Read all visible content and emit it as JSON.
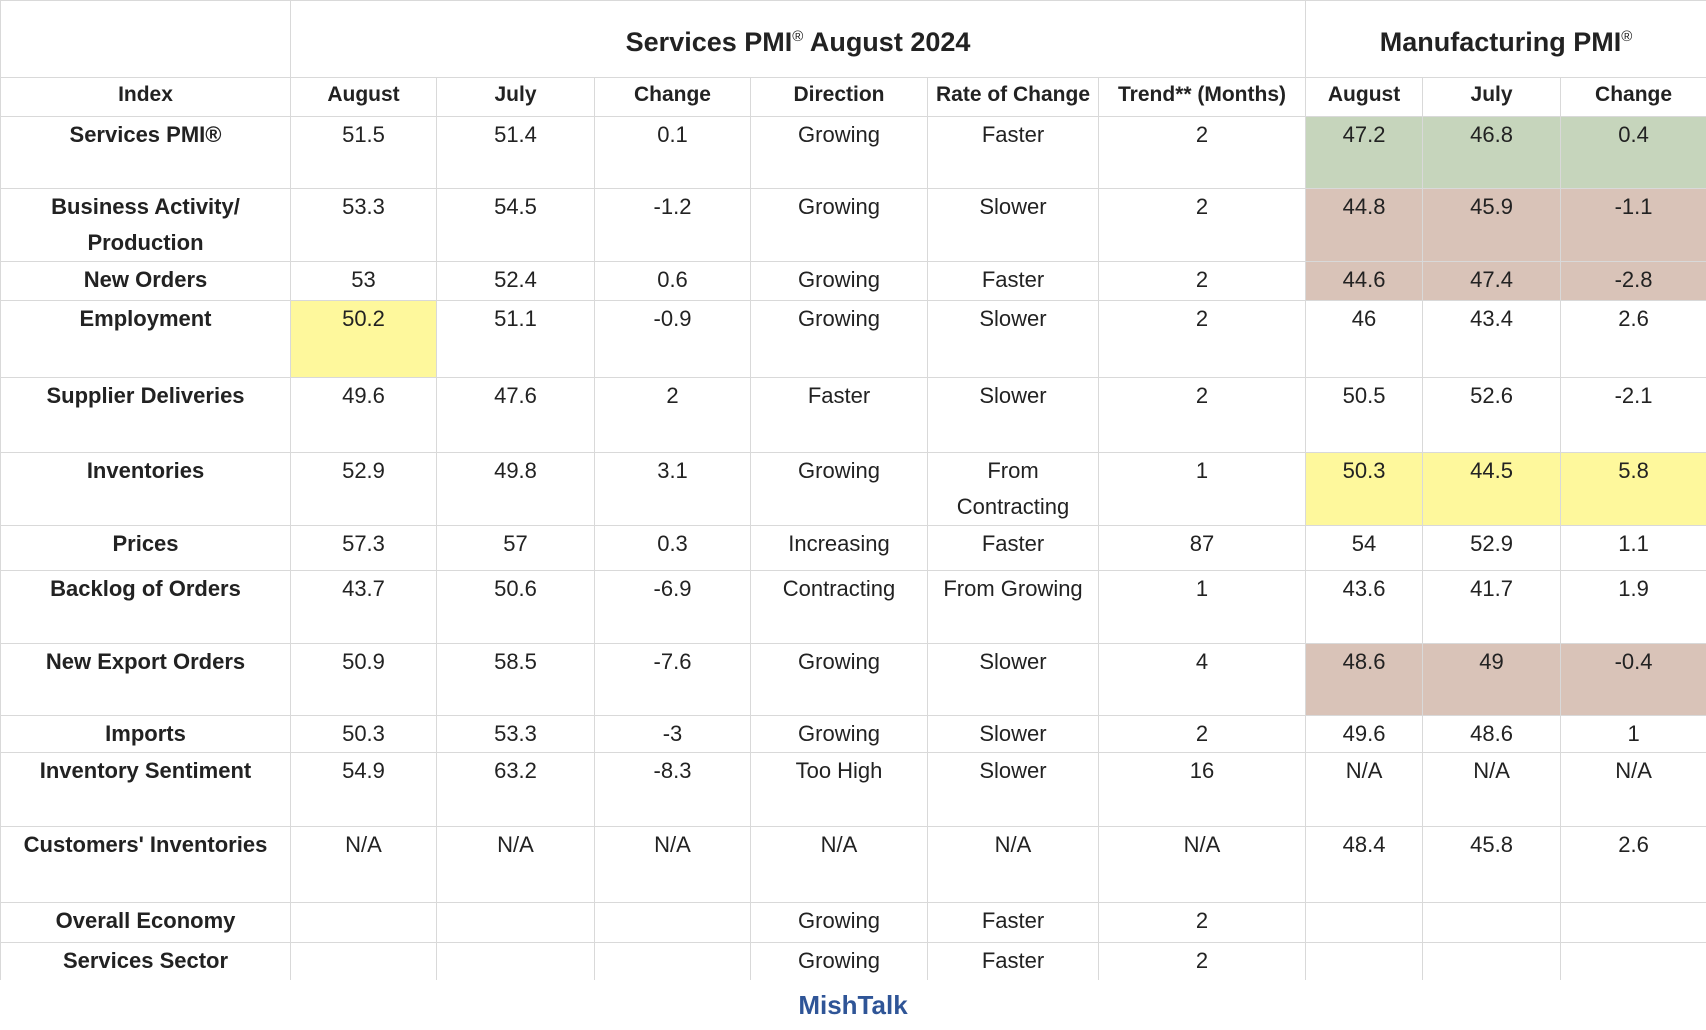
{
  "table": {
    "groups": [
      {
        "text": "Services PMI",
        "mark": "®",
        "suffix": " August 2024"
      },
      {
        "text": "Manufacturing PMI",
        "mark": "®"
      }
    ],
    "column_headers": [
      "Index",
      "August",
      "July",
      "Change",
      "Direction",
      "Rate of Change",
      "Trend** (Months)",
      "August",
      "July",
      "Change"
    ],
    "rows": [
      {
        "cells": [
          "Services PMI®",
          51.5,
          51.4,
          0.1,
          "Growing",
          "Faster",
          2,
          47.2,
          46.8,
          0.4
        ],
        "fills": [
          null,
          null,
          null,
          null,
          null,
          null,
          null,
          "#c6d5bc",
          "#c6d5bc",
          "#c6d5bc"
        ]
      },
      {
        "cells": [
          "Business Activity/ Production",
          53.3,
          54.5,
          -1.2,
          "Growing",
          "Slower",
          2,
          44.8,
          45.9,
          -1.1
        ],
        "fills": [
          null,
          null,
          null,
          null,
          null,
          null,
          null,
          "#d9c3b8",
          "#d9c3b8",
          "#d9c3b8"
        ]
      },
      {
        "cells": [
          "New Orders",
          53,
          52.4,
          0.6,
          "Growing",
          "Faster",
          2,
          44.6,
          47.4,
          -2.8
        ],
        "fills": [
          null,
          null,
          null,
          null,
          null,
          null,
          null,
          "#d9c3b8",
          "#d9c3b8",
          "#d9c3b8"
        ]
      },
      {
        "cells": [
          "Employment",
          50.2,
          51.1,
          -0.9,
          "Growing",
          "Slower",
          2,
          46,
          43.4,
          2.6
        ],
        "fills": [
          null,
          "#fef89c",
          null,
          null,
          null,
          null,
          null,
          null,
          null,
          null
        ]
      },
      {
        "cells": [
          "Supplier Deliveries",
          49.6,
          47.6,
          2,
          "Faster",
          "Slower",
          2,
          50.5,
          52.6,
          -2.1
        ]
      },
      {
        "cells": [
          "Inventories",
          52.9,
          49.8,
          3.1,
          "Growing",
          "From Contracting",
          1,
          50.3,
          44.5,
          5.8
        ],
        "fills": [
          null,
          null,
          null,
          null,
          null,
          null,
          null,
          "#fef89c",
          "#fef89c",
          "#fef89c"
        ]
      },
      {
        "cells": [
          "Prices",
          57.3,
          57,
          0.3,
          "Increasing",
          "Faster",
          87,
          54,
          52.9,
          1.1
        ]
      },
      {
        "cells": [
          "Backlog of Orders",
          43.7,
          50.6,
          -6.9,
          "Contracting",
          "From Growing",
          1,
          43.6,
          41.7,
          1.9
        ]
      },
      {
        "cells": [
          "New Export Orders",
          50.9,
          58.5,
          -7.6,
          "Growing",
          "Slower",
          4,
          48.6,
          49,
          -0.4
        ],
        "fills": [
          null,
          null,
          null,
          null,
          null,
          null,
          null,
          "#d9c3b8",
          "#d9c3b8",
          "#d9c3b8"
        ]
      },
      {
        "cells": [
          "Imports",
          50.3,
          53.3,
          -3,
          "Growing",
          "Slower",
          2,
          49.6,
          48.6,
          1
        ]
      },
      {
        "cells": [
          "Inventory Sentiment",
          54.9,
          63.2,
          -8.3,
          "Too High",
          "Slower",
          16,
          "N/A",
          "N/A",
          "N/A"
        ]
      },
      {
        "cells": [
          "Customers' Inventories",
          "N/A",
          "N/A",
          "N/A",
          "N/A",
          "N/A",
          "N/A",
          48.4,
          45.8,
          2.6
        ]
      },
      {
        "cells": [
          "Overall Economy",
          null,
          null,
          null,
          "Growing",
          "Faster",
          2,
          null,
          null,
          null
        ]
      },
      {
        "cells": [
          "Services Sector",
          null,
          null,
          null,
          "Growing",
          "Faster",
          2,
          null,
          null,
          null
        ]
      }
    ]
  },
  "footer": "MishTalk"
}
